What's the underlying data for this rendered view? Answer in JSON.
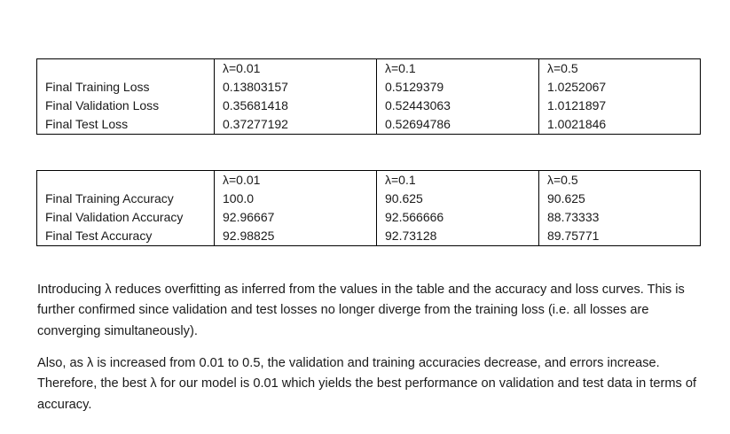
{
  "loss_table": {
    "headers": [
      "",
      "λ=0.01",
      "λ=0.1",
      "λ=0.5"
    ],
    "rows": [
      [
        "Final Training Loss",
        "0.13803157",
        "0.5129379",
        "1.0252067"
      ],
      [
        "Final Validation Loss",
        "0.35681418",
        "0.52443063",
        "1.0121897"
      ],
      [
        "Final Test Loss",
        "0.37277192",
        "0.52694786",
        "1.0021846"
      ]
    ]
  },
  "accuracy_table": {
    "headers": [
      "",
      "λ=0.01",
      "λ=0.1",
      "λ=0.5"
    ],
    "rows": [
      [
        "Final Training Accuracy",
        "100.0",
        "90.625",
        "90.625"
      ],
      [
        "Final Validation Accuracy",
        "92.96667",
        "92.566666",
        "88.73333"
      ],
      [
        "Final Test Accuracy",
        "92.98825",
        "92.73128",
        "89.75771"
      ]
    ]
  },
  "paragraphs": [
    "Introducing λ reduces overfitting as inferred from the values in the table and the accuracy and loss curves. This is further confirmed since validation and test losses no longer diverge from the training loss (i.e. all losses are converging simultaneously).",
    "Also, as λ is increased from 0.01 to 0.5, the validation and training accuracies decrease, and errors increase. Therefore, the best λ for our model is 0.01 which yields the best performance on validation and test data in terms of accuracy."
  ]
}
